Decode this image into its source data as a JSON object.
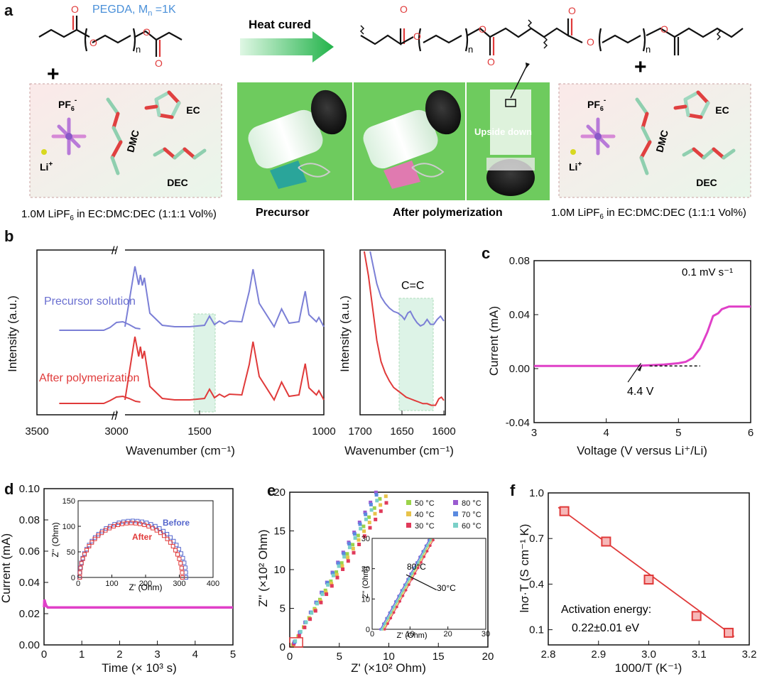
{
  "panel_a": {
    "letter": "a",
    "pegda_label": "PEGDA, M",
    "pegda_sub": "n",
    "pegda_tail": " =1K",
    "n_label": "n",
    "arrow_label": "Heat cured",
    "plus": "+",
    "pf6": "PF",
    "pf6_sub": "6",
    "pf6_sup": "-",
    "li": "Li",
    "li_sup": "+",
    "dmc": "DMC",
    "ec": "EC",
    "dec": "DEC",
    "electrolyte_caption": "1.0M LiPF",
    "electrolyte_caption_sub": "6",
    "electrolyte_caption_tail": " in EC:DMC:DEC (1:1:1 Vol%)",
    "precursor_label": "Precursor",
    "after_label": "After polymerization",
    "upside_down": "Upside down"
  },
  "chart_data": [
    {
      "id": "b-left",
      "type": "line",
      "panel": "b",
      "xlabel": "Wavenumber (cm⁻¹)",
      "ylabel": "Intensity (a.u.)",
      "x_ticks": [
        "3500",
        "3000",
        "1500",
        "1000"
      ],
      "axis_break": true,
      "series": [
        {
          "name": "Precursor solution",
          "color": "#7b7fd6",
          "x": [
            3360,
            3080,
            3040,
            3000,
            2960,
            2920,
            2880,
            2850,
            1800,
            1760,
            1745,
            1738,
            1730,
            1722,
            1700,
            1650,
            1600,
            1540,
            1480,
            1460,
            1440,
            1420,
            1400,
            1380,
            1330,
            1300,
            1285,
            1260,
            1200,
            1170,
            1140,
            1100,
            1090,
            1075,
            1060,
            1030,
            1020,
            1000
          ],
          "y": [
            0.0,
            0.0,
            0.04,
            0.11,
            0.12,
            0.08,
            0.03,
            0.02,
            0.05,
            0.9,
            0.64,
            0.78,
            0.63,
            0.74,
            0.24,
            0.07,
            0.05,
            0.05,
            0.07,
            0.2,
            0.08,
            0.13,
            0.09,
            0.13,
            0.12,
            0.55,
            0.86,
            0.38,
            0.05,
            0.3,
            0.1,
            0.12,
            0.3,
            0.55,
            0.22,
            0.12,
            0.18,
            0.05
          ]
        },
        {
          "name": "After polymerization",
          "color": "#e03a3a",
          "x": [
            3360,
            3080,
            3040,
            3000,
            2960,
            2920,
            2880,
            2850,
            1800,
            1760,
            1745,
            1738,
            1730,
            1722,
            1700,
            1650,
            1600,
            1540,
            1480,
            1460,
            1440,
            1420,
            1400,
            1380,
            1330,
            1300,
            1285,
            1260,
            1200,
            1170,
            1140,
            1100,
            1090,
            1075,
            1060,
            1030,
            1020,
            1000
          ],
          "y": [
            0.0,
            0.0,
            0.04,
            0.09,
            0.1,
            0.07,
            0.03,
            0.02,
            0.05,
            0.94,
            0.66,
            0.8,
            0.63,
            0.74,
            0.24,
            0.07,
            0.05,
            0.05,
            0.07,
            0.2,
            0.08,
            0.13,
            0.09,
            0.13,
            0.12,
            0.55,
            0.87,
            0.38,
            0.05,
            0.3,
            0.1,
            0.12,
            0.3,
            0.56,
            0.22,
            0.12,
            0.18,
            0.05
          ]
        }
      ]
    },
    {
      "id": "b-right",
      "type": "line",
      "panel": "b",
      "xlabel": "Wavenumber (cm⁻¹)",
      "ylabel": "Intensity (a.u.)",
      "x_ticks": [
        "1700",
        "1650",
        "1600"
      ],
      "annotation": "C=C",
      "series": [
        {
          "name": "Precursor solution",
          "color": "#7b7fd6",
          "x": [
            1688,
            1684,
            1680,
            1675,
            1670,
            1665,
            1660,
            1655,
            1650,
            1647,
            1643,
            1640,
            1636,
            1632,
            1628,
            1624,
            1620,
            1616,
            1612,
            1608,
            1604,
            1600
          ],
          "y": [
            1.0,
            0.9,
            0.8,
            0.72,
            0.68,
            0.65,
            0.63,
            0.62,
            0.6,
            0.58,
            0.62,
            0.63,
            0.59,
            0.56,
            0.54,
            0.55,
            0.58,
            0.55,
            0.55,
            0.58,
            0.6,
            0.57
          ]
        },
        {
          "name": "After polymerization",
          "color": "#e03a3a",
          "x": [
            1695,
            1690,
            1685,
            1680,
            1675,
            1670,
            1665,
            1660,
            1655,
            1650,
            1645,
            1640,
            1635,
            1630,
            1625,
            1620,
            1615,
            1610,
            1606,
            1603,
            1600
          ],
          "y": [
            1.0,
            0.85,
            0.65,
            0.45,
            0.32,
            0.25,
            0.2,
            0.16,
            0.14,
            0.12,
            0.1,
            0.09,
            0.08,
            0.07,
            0.06,
            0.06,
            0.05,
            0.05,
            0.09,
            0.1,
            0.08
          ]
        }
      ]
    },
    {
      "id": "c",
      "type": "line",
      "panel": "c",
      "xlabel": "Voltage (V versus Li⁺/Li)",
      "ylabel": "Current (mA)",
      "xlim": [
        3,
        6
      ],
      "ylim": [
        -0.04,
        0.08
      ],
      "x_ticks": [
        "3",
        "4",
        "5",
        "6"
      ],
      "y_ticks": [
        "-0.04",
        "0.00",
        "0.04",
        "0.08"
      ],
      "annotation": "0.1 mV s⁻¹",
      "marker_label": "4.4 V",
      "series": [
        {
          "color": "#e040c8",
          "x": [
            3.0,
            3.5,
            4.0,
            4.4,
            4.8,
            5.0,
            5.1,
            5.2,
            5.3,
            5.4,
            5.48,
            5.55,
            5.6,
            5.7,
            5.8,
            6.0
          ],
          "y": [
            0.002,
            0.002,
            0.002,
            0.002,
            0.003,
            0.004,
            0.005,
            0.008,
            0.015,
            0.027,
            0.039,
            0.041,
            0.044,
            0.046,
            0.046,
            0.046
          ]
        }
      ]
    },
    {
      "id": "d",
      "type": "line",
      "panel": "d",
      "xlabel": "Time (× 10³ s)",
      "ylabel": "Current (mA)",
      "xlim": [
        0,
        5
      ],
      "ylim": [
        0,
        0.1
      ],
      "x_ticks": [
        "0",
        "1",
        "2",
        "3",
        "4",
        "5"
      ],
      "y_ticks": [
        "0.00",
        "0.02",
        "0.04",
        "0.06",
        "0.08",
        "0.10"
      ],
      "series": [
        {
          "color": "#e040c8",
          "x": [
            0.0,
            0.01,
            0.03,
            0.06,
            0.1,
            0.2,
            0.5,
            1,
            2,
            3,
            4,
            5
          ],
          "y": [
            0.024,
            0.029,
            0.027,
            0.025,
            0.024,
            0.024,
            0.024,
            0.024,
            0.024,
            0.024,
            0.024,
            0.024
          ]
        }
      ],
      "inset": {
        "type": "scatter",
        "xlabel": "Z' (Ohm)",
        "ylabel": "Z'' (Ohm)",
        "xlim": [
          0,
          400
        ],
        "ylim": [
          0,
          150
        ],
        "x_ticks": [
          "0",
          "100",
          "200",
          "300",
          "400"
        ],
        "y_ticks": [
          "0",
          "50",
          "100",
          "150"
        ],
        "series": [
          {
            "name": "Before",
            "color": "#5566cc",
            "center": 162,
            "radius": 158
          },
          {
            "name": "After",
            "color": "#e03a3a",
            "center": 157,
            "radius": 152
          }
        ]
      }
    },
    {
      "id": "e",
      "type": "scatter",
      "panel": "e",
      "xlabel": "Z' (×10² Ohm)",
      "ylabel": "Z'' (×10² Ohm)",
      "xlim": [
        0,
        20
      ],
      "ylim": [
        0,
        20
      ],
      "x_ticks": [
        "0",
        "5",
        "10",
        "15",
        "20"
      ],
      "y_ticks": [
        "0",
        "5",
        "10",
        "15",
        "20"
      ],
      "series": [
        {
          "name": "50 °C",
          "color": "#9bd34a",
          "slope": 2.15
        },
        {
          "name": "40 °C",
          "color": "#e8c34a",
          "slope": 2.05
        },
        {
          "name": "30 °C",
          "color": "#e03a5a",
          "slope": 1.95
        },
        {
          "name": "80 °C",
          "color": "#9a5ad0",
          "slope": 2.35
        },
        {
          "name": "70 °C",
          "color": "#5a8ae0",
          "slope": 2.3
        },
        {
          "name": "60 °C",
          "color": "#7ad0c8",
          "slope": 2.2
        }
      ],
      "inset": {
        "xlabel": "Z' (Ohm)",
        "ylabel": "Z'' (Ohm)",
        "xlim": [
          0,
          30
        ],
        "ylim": [
          0,
          30
        ],
        "x_ticks": [
          "0",
          "10",
          "20",
          "30"
        ],
        "y_ticks": [
          "0",
          "10",
          "20",
          "30"
        ],
        "label_hot": "80°C",
        "label_cold": "30°C"
      }
    },
    {
      "id": "f",
      "type": "scatter",
      "panel": "f",
      "xlabel": "1000/T (K⁻¹)",
      "ylabel": "lnσ·T (S cm⁻¹ K)",
      "xlim": [
        2.8,
        3.2
      ],
      "ylim": [
        0,
        1.0
      ],
      "x_ticks": [
        "2.8",
        "2.9",
        "3.0",
        "3.1",
        "3.2"
      ],
      "y_ticks": [
        "0.1",
        "0.4",
        "0.7",
        "1.0"
      ],
      "annotation": "Activation energy:",
      "annotation2": "0.22±0.01 eV",
      "series": [
        {
          "color": "#e03a3a",
          "x": [
            2.832,
            2.915,
            3.0,
            3.095,
            3.159
          ],
          "y": [
            0.88,
            0.68,
            0.43,
            0.19,
            0.08
          ]
        }
      ]
    }
  ],
  "labels": {
    "b": "b",
    "c": "c",
    "d": "d",
    "e": "e",
    "f": "f",
    "before": "Before",
    "after": "After",
    "precursor_solution": "Precursor solution",
    "after_polymerization": "After polymerization"
  },
  "colors": {
    "blue_label": "#4a90d9",
    "red_o": "#e03a3a",
    "green_photo": "#5cc45c",
    "pink": "#e040c8"
  }
}
